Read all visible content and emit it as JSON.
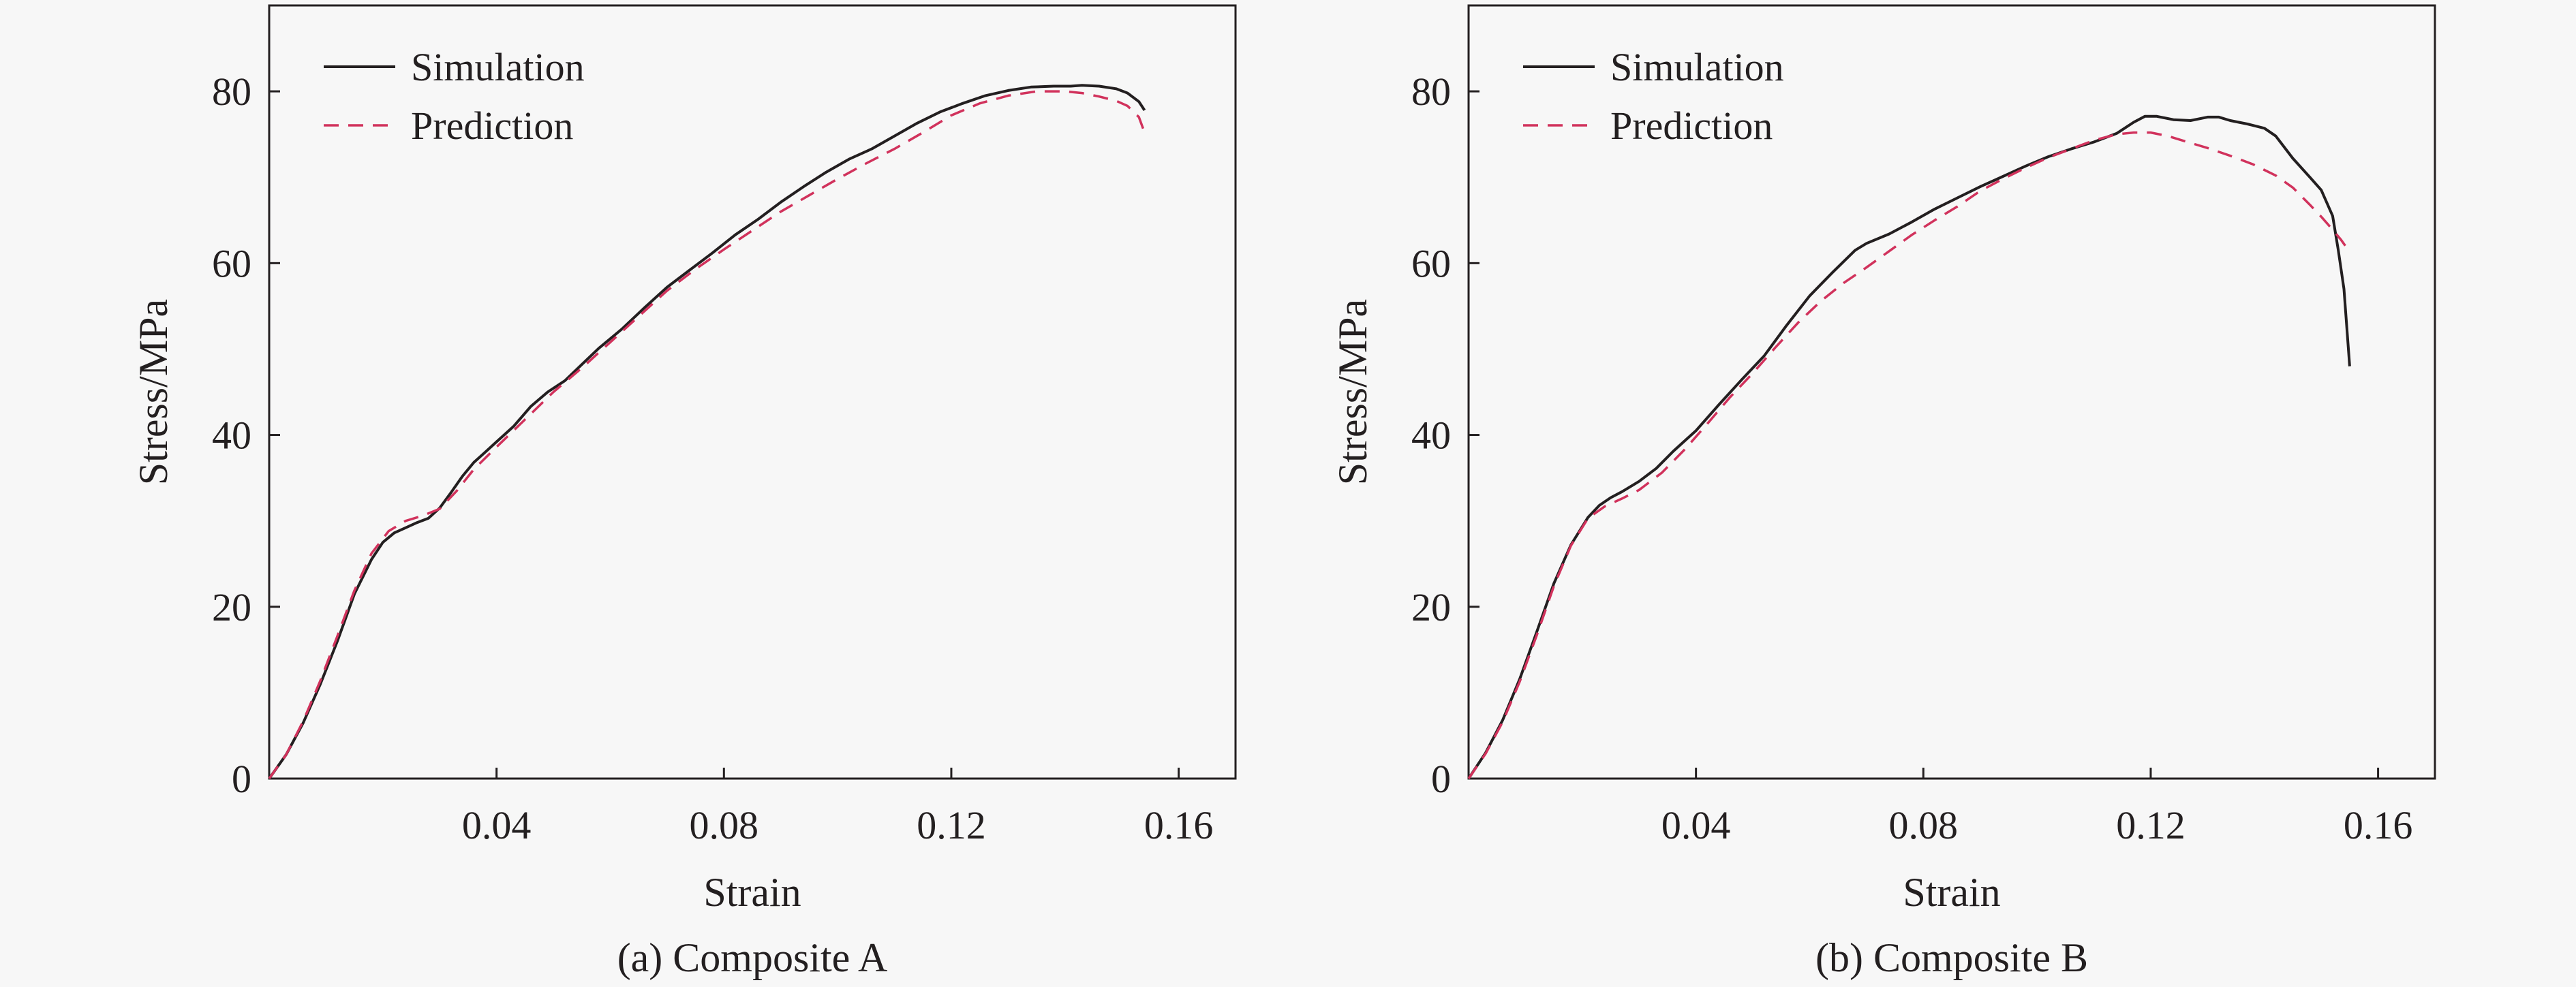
{
  "figure": {
    "background": "#f7f7f7",
    "axis_color": "#231f20"
  },
  "chart_data": [
    {
      "type": "line",
      "caption": "(a) Composite A",
      "xlabel": "Strain",
      "ylabel": "Stress/MPa",
      "xlim": [
        0,
        0.17
      ],
      "ylim": [
        0,
        90
      ],
      "xticks": [
        0.04,
        0.08,
        0.12,
        0.16
      ],
      "xtick_labels": [
        "0.04",
        "0.08",
        "0.12",
        "0.16"
      ],
      "yticks": [
        0,
        20,
        40,
        60,
        80
      ],
      "ytick_labels": [
        "0",
        "20",
        "40",
        "60",
        "80"
      ],
      "grid": false,
      "legend_position": "top-left",
      "series": [
        {
          "name": "Simulation",
          "color": "#231f20",
          "style": "solid",
          "x": [
            0,
            0.003,
            0.006,
            0.009,
            0.012,
            0.015,
            0.018,
            0.02,
            0.022,
            0.024,
            0.026,
            0.028,
            0.03,
            0.032,
            0.034,
            0.036,
            0.038,
            0.04,
            0.043,
            0.046,
            0.049,
            0.052,
            0.055,
            0.058,
            0.062,
            0.066,
            0.07,
            0.074,
            0.078,
            0.082,
            0.086,
            0.09,
            0.094,
            0.098,
            0.102,
            0.106,
            0.11,
            0.114,
            0.118,
            0.122,
            0.126,
            0.13,
            0.134,
            0.138,
            0.141,
            0.143,
            0.146,
            0.149,
            0.151,
            0.153,
            0.154
          ],
          "y": [
            0,
            2.8,
            6.5,
            11,
            16,
            21.5,
            25.5,
            27.5,
            28.6,
            29.2,
            29.8,
            30.3,
            31.5,
            33.3,
            35.2,
            36.8,
            38,
            39.2,
            41,
            43.3,
            45,
            46.3,
            48.2,
            50.1,
            52.3,
            54.8,
            57.2,
            59.2,
            61.2,
            63.3,
            65.1,
            67.1,
            68.9,
            70.6,
            72.1,
            73.3,
            74.8,
            76.3,
            77.6,
            78.6,
            79.5,
            80.1,
            80.5,
            80.6,
            80.6,
            80.7,
            80.6,
            80.3,
            79.8,
            78.8,
            77.8
          ]
        },
        {
          "name": "Prediction",
          "color": "#d1325c",
          "style": "dashed",
          "x": [
            0,
            0.003,
            0.006,
            0.009,
            0.012,
            0.015,
            0.018,
            0.021,
            0.024,
            0.027,
            0.03,
            0.033,
            0.036,
            0.04,
            0.045,
            0.05,
            0.055,
            0.06,
            0.065,
            0.07,
            0.075,
            0.08,
            0.085,
            0.09,
            0.095,
            0.1,
            0.105,
            0.11,
            0.115,
            0.12,
            0.125,
            0.13,
            0.135,
            0.14,
            0.143,
            0.146,
            0.149,
            0.151,
            0.153,
            0.154
          ],
          "y": [
            0,
            2.8,
            6.7,
            11.4,
            16.6,
            21.9,
            26.2,
            28.8,
            30,
            30.6,
            31.4,
            33.5,
            36,
            38.6,
            41.8,
            45,
            47.8,
            50.8,
            53.8,
            56.8,
            59.3,
            61.6,
            63.8,
            66,
            67.9,
            69.8,
            71.6,
            73.3,
            75.2,
            77.2,
            78.6,
            79.5,
            80,
            80,
            79.8,
            79.4,
            78.9,
            78.3,
            77,
            75.2
          ]
        }
      ]
    },
    {
      "type": "line",
      "caption": "(b) Composite B",
      "xlabel": "Strain",
      "ylabel": "Stress/MPa",
      "xlim": [
        0,
        0.17
      ],
      "ylim": [
        0,
        90
      ],
      "xticks": [
        0.04,
        0.08,
        0.12,
        0.16
      ],
      "xtick_labels": [
        "0.04",
        "0.08",
        "0.12",
        "0.16"
      ],
      "yticks": [
        0,
        20,
        40,
        60,
        80
      ],
      "ytick_labels": [
        "0",
        "20",
        "40",
        "60",
        "80"
      ],
      "grid": false,
      "legend_position": "top-left",
      "series": [
        {
          "name": "Simulation",
          "color": "#231f20",
          "style": "solid",
          "x": [
            0,
            0.003,
            0.006,
            0.009,
            0.012,
            0.015,
            0.018,
            0.021,
            0.023,
            0.025,
            0.027,
            0.03,
            0.033,
            0.036,
            0.04,
            0.044,
            0.048,
            0.052,
            0.056,
            0.06,
            0.064,
            0.068,
            0.07,
            0.074,
            0.078,
            0.082,
            0.086,
            0.09,
            0.094,
            0.098,
            0.102,
            0.106,
            0.11,
            0.114,
            0.117,
            0.119,
            0.121,
            0.124,
            0.127,
            0.13,
            0.132,
            0.134,
            0.137,
            0.14,
            0.142,
            0.145,
            0.148,
            0.15,
            0.152,
            0.153,
            0.154,
            0.1545,
            0.155
          ],
          "y": [
            0,
            3,
            6.8,
            11.6,
            17.1,
            22.7,
            27.2,
            30.4,
            31.8,
            32.7,
            33.4,
            34.6,
            36.1,
            38.1,
            40.5,
            43.5,
            46.4,
            49.2,
            52.8,
            56.2,
            58.9,
            61.5,
            62.3,
            63.4,
            64.8,
            66.3,
            67.6,
            68.9,
            70.1,
            71.3,
            72.4,
            73.3,
            74.1,
            75.1,
            76.4,
            77.1,
            77.1,
            76.7,
            76.6,
            77,
            77,
            76.6,
            76.2,
            75.7,
            74.8,
            72.2,
            70,
            68.5,
            65.5,
            61.5,
            57,
            52.5,
            48
          ]
        },
        {
          "name": "Prediction",
          "color": "#d1325c",
          "style": "dashed",
          "x": [
            0,
            0.003,
            0.006,
            0.009,
            0.012,
            0.015,
            0.018,
            0.021,
            0.024,
            0.027,
            0.03,
            0.034,
            0.038,
            0.042,
            0.046,
            0.05,
            0.054,
            0.058,
            0.062,
            0.066,
            0.07,
            0.074,
            0.078,
            0.082,
            0.086,
            0.09,
            0.094,
            0.098,
            0.102,
            0.106,
            0.11,
            0.114,
            0.117,
            0.12,
            0.123,
            0.126,
            0.13,
            0.134,
            0.138,
            0.142,
            0.145,
            0.148,
            0.15,
            0.152,
            0.1535,
            0.155
          ],
          "y": [
            0,
            2.9,
            6.6,
            11.3,
            16.7,
            22.4,
            27.1,
            30.3,
            31.7,
            32.6,
            33.6,
            35.6,
            38.3,
            41.3,
            44.4,
            47.2,
            50.2,
            53.1,
            55.6,
            57.7,
            59.5,
            61.4,
            63.3,
            65,
            66.6,
            68.4,
            69.8,
            71.1,
            72.3,
            73.3,
            74.3,
            75,
            75.2,
            75.2,
            74.8,
            74.2,
            73.4,
            72.5,
            71.5,
            70.2,
            68.8,
            66.8,
            65.4,
            63.9,
            62.7,
            61.3
          ]
        }
      ]
    }
  ]
}
